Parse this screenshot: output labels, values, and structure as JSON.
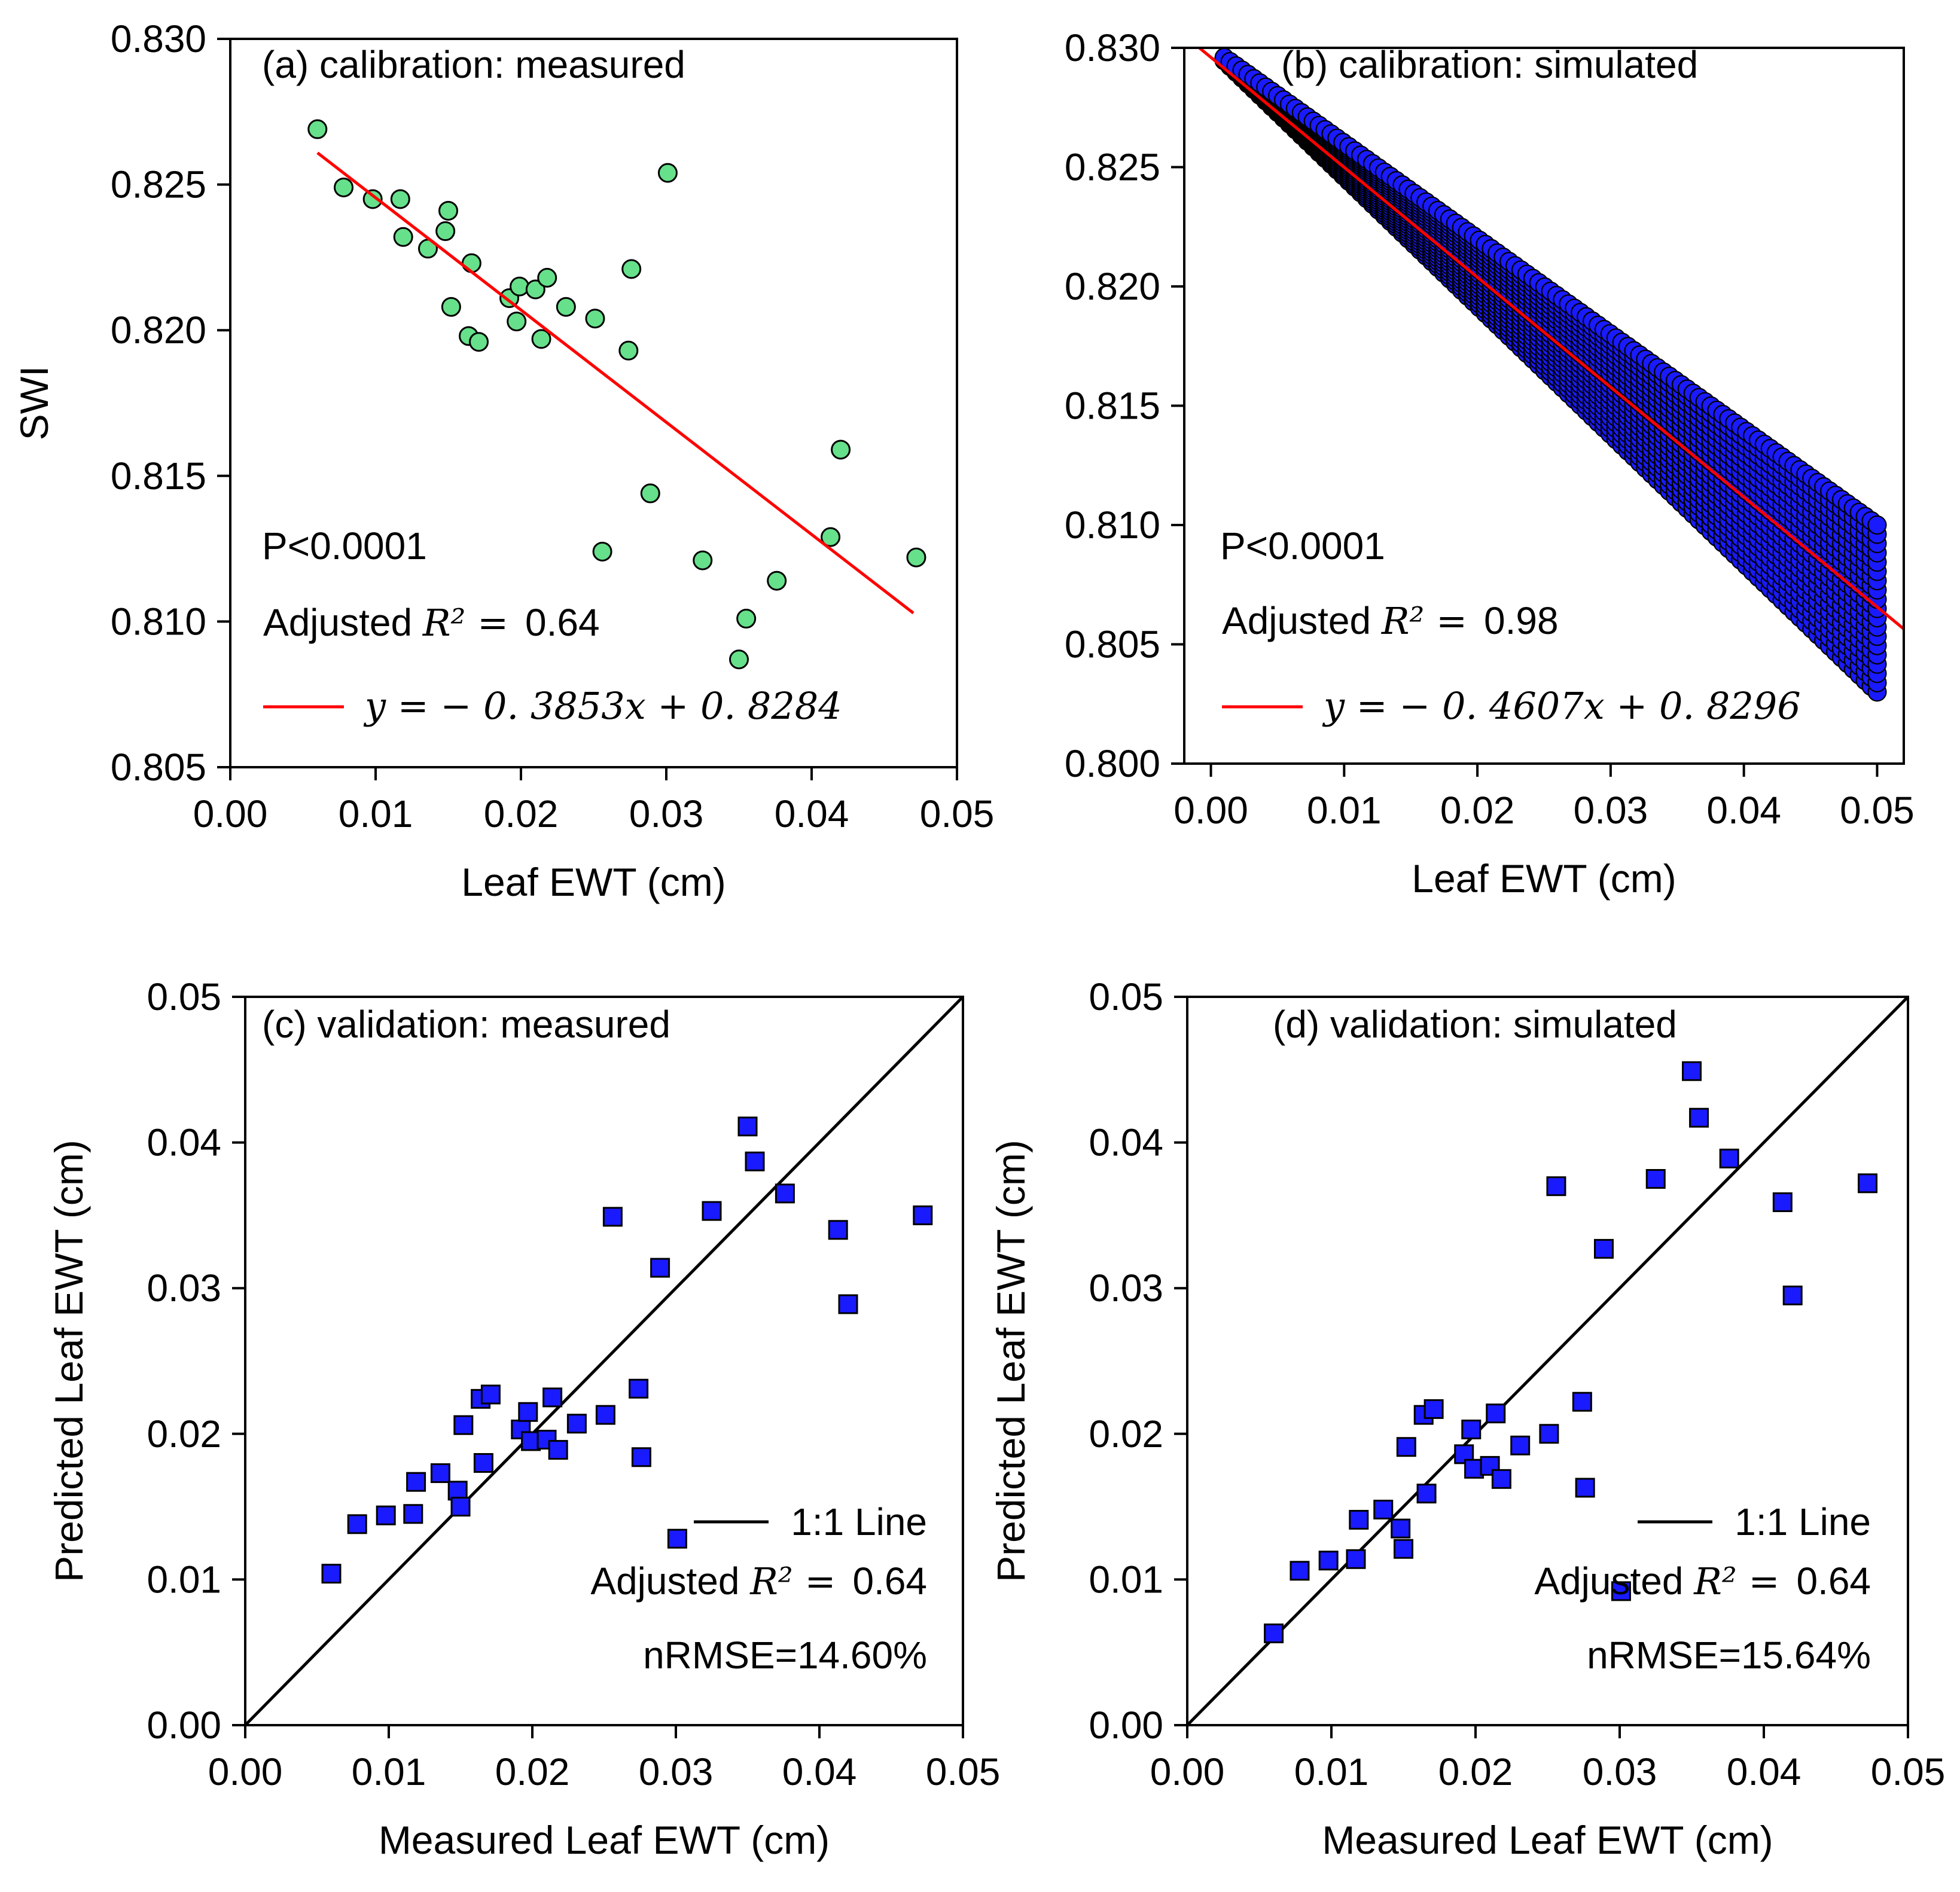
{
  "chart_data": [
    {
      "id": "a",
      "type": "scatter",
      "panel_label": "(a) calibration: measured",
      "xlabel": "Leaf EWT (cm)",
      "ylabel": "SWI",
      "xlim": [
        0.0,
        0.05
      ],
      "ylim": [
        0.805,
        0.83
      ],
      "xticks": [
        "0.00",
        "0.01",
        "0.02",
        "0.03",
        "0.04",
        "0.05"
      ],
      "yticks": [
        "0.805",
        "0.810",
        "0.815",
        "0.820",
        "0.825",
        "0.830"
      ],
      "marker": "circle",
      "marker_color": "#66e08a",
      "line_color": "#ff0000",
      "p_text": "P<0.0001",
      "adj_label": "Adjusted",
      "r2_math": "R² =",
      "r2_value": "0.64",
      "equation": "y = − 0. 3853x + 0. 8284",
      "fit": {
        "slope": -0.3853,
        "intercept": 0.8284,
        "x_range": [
          0.006,
          0.047
        ]
      },
      "points": [
        {
          "x": 0.006,
          "y": 0.8269
        },
        {
          "x": 0.0078,
          "y": 0.8249
        },
        {
          "x": 0.0098,
          "y": 0.8245
        },
        {
          "x": 0.0117,
          "y": 0.8245
        },
        {
          "x": 0.0119,
          "y": 0.8232
        },
        {
          "x": 0.0136,
          "y": 0.8228
        },
        {
          "x": 0.0148,
          "y": 0.8234
        },
        {
          "x": 0.015,
          "y": 0.8241
        },
        {
          "x": 0.0152,
          "y": 0.8208
        },
        {
          "x": 0.0164,
          "y": 0.8198
        },
        {
          "x": 0.0166,
          "y": 0.8223
        },
        {
          "x": 0.0171,
          "y": 0.8196
        },
        {
          "x": 0.0192,
          "y": 0.8211
        },
        {
          "x": 0.0197,
          "y": 0.8203
        },
        {
          "x": 0.0199,
          "y": 0.8215
        },
        {
          "x": 0.021,
          "y": 0.8214
        },
        {
          "x": 0.0214,
          "y": 0.8197
        },
        {
          "x": 0.0218,
          "y": 0.8218
        },
        {
          "x": 0.0231,
          "y": 0.8208
        },
        {
          "x": 0.0251,
          "y": 0.8204
        },
        {
          "x": 0.0256,
          "y": 0.8124
        },
        {
          "x": 0.0274,
          "y": 0.8193
        },
        {
          "x": 0.0276,
          "y": 0.8221
        },
        {
          "x": 0.0289,
          "y": 0.8144
        },
        {
          "x": 0.0301,
          "y": 0.8254
        },
        {
          "x": 0.0325,
          "y": 0.8121
        },
        {
          "x": 0.035,
          "y": 0.8087
        },
        {
          "x": 0.0355,
          "y": 0.8101
        },
        {
          "x": 0.0376,
          "y": 0.8114
        },
        {
          "x": 0.0413,
          "y": 0.8129
        },
        {
          "x": 0.042,
          "y": 0.8159
        },
        {
          "x": 0.0472,
          "y": 0.8122
        }
      ]
    },
    {
      "id": "b",
      "type": "scatter",
      "panel_label": "(b) calibration: simulated",
      "xlabel": "Leaf EWT (cm)",
      "ylabel": "",
      "xlim": [
        -0.002,
        0.052
      ],
      "ylim": [
        0.8,
        0.83
      ],
      "xticks": [
        "0.00",
        "0.01",
        "0.02",
        "0.03",
        "0.04",
        "0.05"
      ],
      "yticks": [
        "0.800",
        "0.805",
        "0.810",
        "0.815",
        "0.820",
        "0.825",
        "0.830"
      ],
      "marker": "circle",
      "marker_color": "#1a1aff",
      "line_color": "#ff0000",
      "p_text": "P<0.0001",
      "adj_label": "Adjusted",
      "r2_math": "R² =",
      "r2_value": "0.98",
      "equation": "y = − 0. 4607x + 0. 8296",
      "fit": {
        "slope": -0.4607,
        "intercept": 0.8296,
        "x_range": [
          -0.002,
          0.052
        ]
      },
      "band": {
        "x_range": [
          0.001,
          0.05
        ],
        "upper": {
          "slope": -0.4,
          "intercept": 0.83
        },
        "lower": {
          "slope": -0.54,
          "intercept": 0.83
        }
      }
    },
    {
      "id": "c",
      "type": "scatter",
      "panel_label": "(c) validation: measured",
      "xlabel": "Measured Leaf EWT (cm)",
      "ylabel": "Predicted Leaf EWT (cm)",
      "xlim": [
        0.0,
        0.05
      ],
      "ylim": [
        0.0,
        0.05
      ],
      "xticks": [
        "0.00",
        "0.01",
        "0.02",
        "0.03",
        "0.04",
        "0.05"
      ],
      "yticks": [
        "0.00",
        "0.01",
        "0.02",
        "0.03",
        "0.04",
        "0.05"
      ],
      "marker": "square",
      "marker_color": "#1a1aff",
      "line_label": "1:1 Line",
      "adj_label": "Adjusted",
      "r2_math": "R² =",
      "r2_value": "0.64",
      "nrmse": "nRMSE=14.60%",
      "points": [
        {
          "x": 0.006,
          "y": 0.0104
        },
        {
          "x": 0.0078,
          "y": 0.0138
        },
        {
          "x": 0.0098,
          "y": 0.0144
        },
        {
          "x": 0.0117,
          "y": 0.0145
        },
        {
          "x": 0.0119,
          "y": 0.0167
        },
        {
          "x": 0.0136,
          "y": 0.0173
        },
        {
          "x": 0.0148,
          "y": 0.0161
        },
        {
          "x": 0.015,
          "y": 0.015
        },
        {
          "x": 0.0152,
          "y": 0.0206
        },
        {
          "x": 0.0164,
          "y": 0.0224
        },
        {
          "x": 0.0166,
          "y": 0.018
        },
        {
          "x": 0.0171,
          "y": 0.0227
        },
        {
          "x": 0.0192,
          "y": 0.0203
        },
        {
          "x": 0.0197,
          "y": 0.0215
        },
        {
          "x": 0.0199,
          "y": 0.0195
        },
        {
          "x": 0.021,
          "y": 0.0196
        },
        {
          "x": 0.0214,
          "y": 0.0225
        },
        {
          "x": 0.0218,
          "y": 0.0189
        },
        {
          "x": 0.0231,
          "y": 0.0207
        },
        {
          "x": 0.0251,
          "y": 0.0213
        },
        {
          "x": 0.0256,
          "y": 0.0349
        },
        {
          "x": 0.0274,
          "y": 0.0231
        },
        {
          "x": 0.0276,
          "y": 0.0184
        },
        {
          "x": 0.0289,
          "y": 0.0314
        },
        {
          "x": 0.0301,
          "y": 0.0128
        },
        {
          "x": 0.0325,
          "y": 0.0353
        },
        {
          "x": 0.035,
          "y": 0.0411
        },
        {
          "x": 0.0355,
          "y": 0.0387
        },
        {
          "x": 0.0376,
          "y": 0.0365
        },
        {
          "x": 0.0413,
          "y": 0.034
        },
        {
          "x": 0.042,
          "y": 0.0289
        },
        {
          "x": 0.0472,
          "y": 0.035
        }
      ]
    },
    {
      "id": "d",
      "type": "scatter",
      "panel_label": "(d) validation: simulated",
      "xlabel": "Measured Leaf EWT (cm)",
      "ylabel": "Predicted Leaf EWT (cm)",
      "xlim": [
        0.0,
        0.05
      ],
      "ylim": [
        0.0,
        0.05
      ],
      "xticks": [
        "0.00",
        "0.01",
        "0.02",
        "0.03",
        "0.04",
        "0.05"
      ],
      "yticks": [
        "0.00",
        "0.01",
        "0.02",
        "0.03",
        "0.04",
        "0.05"
      ],
      "marker": "square",
      "marker_color": "#1a1aff",
      "line_label": "1:1 Line",
      "adj_label": "Adjusted",
      "r2_math": "R² =",
      "r2_value": "0.64",
      "nrmse": "nRMSE=15.64%",
      "points": [
        {
          "x": 0.006,
          "y": 0.0063
        },
        {
          "x": 0.0078,
          "y": 0.0106
        },
        {
          "x": 0.0098,
          "y": 0.0113
        },
        {
          "x": 0.0117,
          "y": 0.0114
        },
        {
          "x": 0.0119,
          "y": 0.0141
        },
        {
          "x": 0.0136,
          "y": 0.0148
        },
        {
          "x": 0.0148,
          "y": 0.0135
        },
        {
          "x": 0.015,
          "y": 0.0121
        },
        {
          "x": 0.0152,
          "y": 0.0191
        },
        {
          "x": 0.0164,
          "y": 0.0213
        },
        {
          "x": 0.0166,
          "y": 0.0159
        },
        {
          "x": 0.0171,
          "y": 0.0217
        },
        {
          "x": 0.0192,
          "y": 0.0186
        },
        {
          "x": 0.0197,
          "y": 0.0203
        },
        {
          "x": 0.0199,
          "y": 0.0176
        },
        {
          "x": 0.021,
          "y": 0.0178
        },
        {
          "x": 0.0214,
          "y": 0.0214
        },
        {
          "x": 0.0218,
          "y": 0.0169
        },
        {
          "x": 0.0231,
          "y": 0.0192
        },
        {
          "x": 0.0251,
          "y": 0.02
        },
        {
          "x": 0.0256,
          "y": 0.037
        },
        {
          "x": 0.0274,
          "y": 0.0222
        },
        {
          "x": 0.0276,
          "y": 0.0163
        },
        {
          "x": 0.0289,
          "y": 0.0327
        },
        {
          "x": 0.0301,
          "y": 0.0092
        },
        {
          "x": 0.0325,
          "y": 0.0375
        },
        {
          "x": 0.035,
          "y": 0.0449
        },
        {
          "x": 0.0355,
          "y": 0.0417
        },
        {
          "x": 0.0376,
          "y": 0.0389
        },
        {
          "x": 0.0413,
          "y": 0.0359
        },
        {
          "x": 0.042,
          "y": 0.0295
        },
        {
          "x": 0.0472,
          "y": 0.0372
        }
      ]
    }
  ]
}
